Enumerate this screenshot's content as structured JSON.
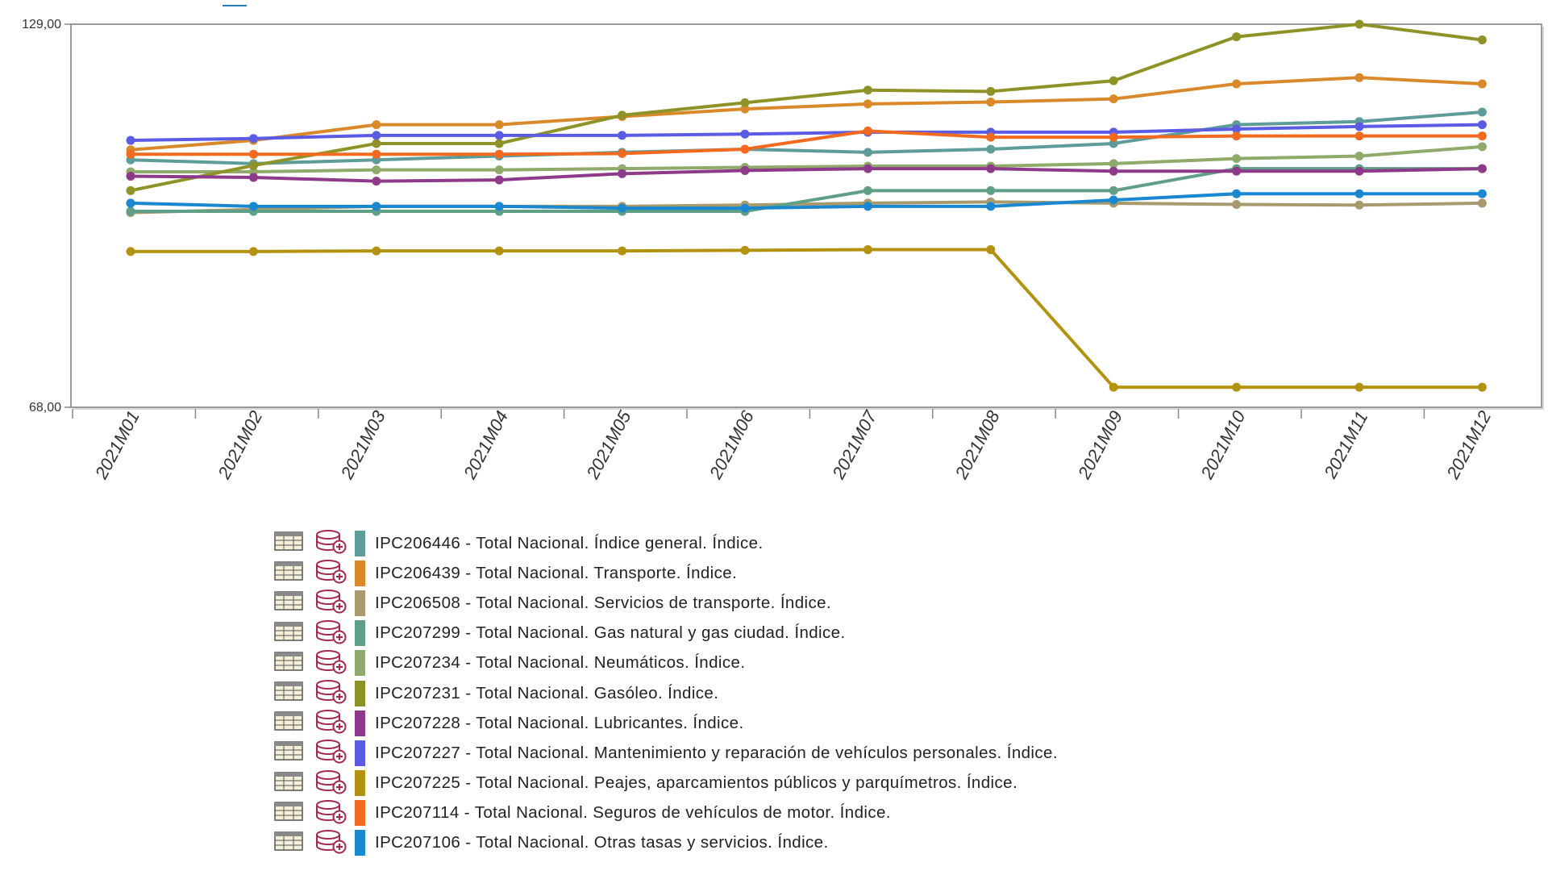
{
  "chart_data": {
    "type": "line",
    "y_tick_labels": [
      "129,00",
      "68,00"
    ],
    "ylim": [
      68,
      129
    ],
    "categories": [
      "2021M01",
      "2021M02",
      "2021M03",
      "2021M04",
      "2021M05",
      "2021M06",
      "2021M07",
      "2021M08",
      "2021M09",
      "2021M10",
      "2021M11",
      "2021M12"
    ],
    "series": [
      {
        "code": "IPC206446",
        "name": "IPC206446 - Total Nacional. Índice general. Índice.",
        "color": "#5e9c9a",
        "values": [
          107.4,
          106.8,
          107.4,
          108.0,
          108.6,
          109.1,
          108.6,
          109.1,
          110.0,
          113.0,
          113.5,
          115.0
        ]
      },
      {
        "code": "IPC206439",
        "name": "IPC206439 - Total Nacional. Transporte. Índice.",
        "color": "#d9892a",
        "values": [
          109.0,
          110.5,
          113.0,
          113.0,
          114.3,
          115.5,
          116.3,
          116.6,
          117.1,
          119.5,
          120.5,
          119.5
        ]
      },
      {
        "code": "IPC206508",
        "name": "IPC206508 - Total Nacional. Servicios de transporte. Índice.",
        "color": "#a79b6e",
        "values": [
          99.0,
          99.5,
          100.0,
          100.0,
          100.0,
          100.2,
          100.5,
          100.7,
          100.5,
          100.3,
          100.2,
          100.5
        ]
      },
      {
        "code": "IPC207299",
        "name": "IPC207299 - Total Nacional. Gas natural y gas ciudad. Índice.",
        "color": "#5f9f86",
        "values": [
          99.2,
          99.2,
          99.2,
          99.2,
          99.2,
          99.2,
          102.5,
          102.5,
          102.5,
          106.0,
          106.0,
          106.0
        ]
      },
      {
        "code": "IPC207234",
        "name": "IPC207234 - Total Nacional. Neumáticos. Índice.",
        "color": "#8faa6a",
        "values": [
          105.5,
          105.5,
          105.8,
          105.8,
          106.0,
          106.2,
          106.4,
          106.4,
          106.8,
          107.6,
          108.0,
          109.5
        ]
      },
      {
        "code": "IPC207231",
        "name": "IPC207231 - Total Nacional. Gasóleo. Índice.",
        "color": "#8f9226",
        "values": [
          102.5,
          106.5,
          110.0,
          110.0,
          114.5,
          116.5,
          118.5,
          118.3,
          120.0,
          127.0,
          129.0,
          126.5
        ]
      },
      {
        "code": "IPC207228",
        "name": "IPC207228 - Total Nacional. Lubricantes. Índice.",
        "color": "#8e3a8a",
        "values": [
          104.8,
          104.6,
          104.0,
          104.2,
          105.2,
          105.7,
          106.0,
          106.0,
          105.6,
          105.6,
          105.6,
          106.0
        ]
      },
      {
        "code": "IPC207227",
        "name": "IPC207227 - Total Nacional. Mantenimiento y reparación de vehículos personales. Índice.",
        "color": "#5b5be3",
        "values": [
          110.5,
          110.8,
          111.3,
          111.3,
          111.3,
          111.5,
          111.8,
          111.8,
          111.8,
          112.3,
          112.7,
          113.0
        ]
      },
      {
        "code": "IPC207225",
        "name": "IPC207225 - Total Nacional. Peajes, aparcamientos públicos y parquímetros. Índice.",
        "color": "#b3920f",
        "values": [
          92.8,
          92.8,
          92.9,
          92.9,
          92.9,
          93.0,
          93.1,
          93.1,
          71.2,
          71.2,
          71.2,
          71.2
        ]
      },
      {
        "code": "IPC207114",
        "name": "IPC207114 - Total Nacional. Seguros de vehículos de motor. Índice.",
        "color": "#f26a1f",
        "values": [
          108.3,
          108.3,
          108.3,
          108.3,
          108.4,
          109.1,
          112.0,
          111.0,
          111.0,
          111.2,
          111.2,
          111.2
        ]
      },
      {
        "code": "IPC207106",
        "name": "IPC207106 - Total Nacional. Otras tasas y servicios. Índice.",
        "color": "#1a88d0",
        "values": [
          100.5,
          100.0,
          100.0,
          100.0,
          99.7,
          99.7,
          100.0,
          100.0,
          101.0,
          102.0,
          102.0,
          102.0
        ]
      }
    ]
  }
}
